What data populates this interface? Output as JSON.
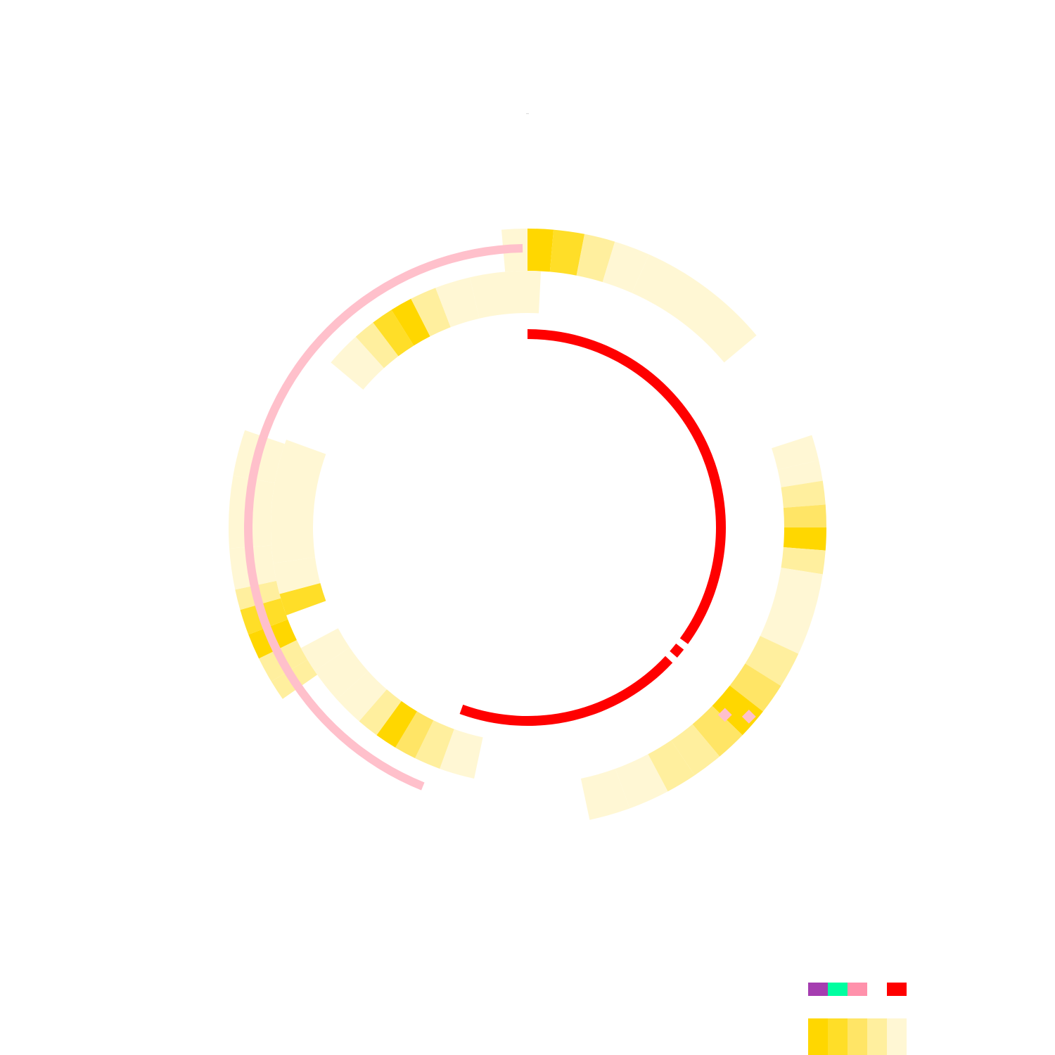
{
  "chart_data": {
    "type": "circos",
    "title": "--",
    "palette": [
      "#ffd700",
      "#ffde28",
      "#ffe566",
      "#ffef9e",
      "#fff7d4"
    ],
    "legend_colors": [
      "#a53db0",
      "#00ffa0",
      "#ff91ab",
      "#ffffff",
      "#ff0000"
    ],
    "tracks": [
      {
        "r": [
          365,
          425
        ],
        "cells": [
          [
            0,
            5,
            0
          ],
          [
            5,
            11,
            1
          ],
          [
            11,
            17,
            3
          ],
          [
            17,
            24,
            4
          ],
          [
            24,
            50,
            4
          ],
          [
            355,
            360,
            4
          ],
          [
            72,
            77,
            4
          ],
          [
            77,
            81,
            4
          ],
          [
            81,
            85.6,
            3
          ],
          [
            85.6,
            90,
            2
          ],
          [
            90,
            94.4,
            0
          ],
          [
            94.4,
            99,
            3
          ],
          [
            99,
            121,
            4
          ],
          [
            115,
            122,
            3
          ],
          [
            122,
            128,
            2
          ],
          [
            128,
            134,
            0
          ],
          [
            134,
            140,
            2
          ],
          [
            140,
            146,
            3
          ],
          [
            146,
            152,
            3
          ],
          [
            152,
            160,
            4
          ],
          [
            160,
            168,
            4
          ],
          [
            235,
            239,
            3
          ],
          [
            239,
            244,
            3
          ],
          [
            244,
            249,
            0
          ],
          [
            249,
            254,
            1
          ],
          [
            254,
            258,
            3
          ],
          [
            258,
            266,
            4
          ],
          [
            266,
            280,
            4
          ],
          [
            280,
            289,
            4
          ]
        ]
      },
      {
        "r": [
          305,
          365
        ],
        "cells": [
          [
            0,
            3,
            4
          ],
          [
            310,
            318,
            4
          ],
          [
            318,
            323,
            3
          ],
          [
            323,
            328,
            1
          ],
          [
            328,
            333,
            0
          ],
          [
            333,
            339,
            3
          ],
          [
            339,
            347,
            4
          ],
          [
            347,
            360,
            4
          ],
          [
            192,
            200,
            4
          ],
          [
            200,
            206,
            3
          ],
          [
            206,
            211,
            2
          ],
          [
            211,
            216,
            0
          ],
          [
            216,
            221,
            3
          ],
          [
            221,
            228,
            4
          ],
          [
            228,
            236,
            4
          ],
          [
            236,
            242,
            4
          ],
          [
            250,
            255,
            1
          ],
          [
            255,
            262,
            4
          ],
          [
            262,
            290,
            4
          ]
        ]
      }
    ],
    "arcs": [
      {
        "color": "#ffc0cb",
        "r": [
          391,
          403
        ],
        "start": 202,
        "end": 359
      },
      {
        "color": "#ff0000",
        "r": [
          268,
          282
        ],
        "start": 0,
        "end": 126
      },
      {
        "color": "#ff0000",
        "r": [
          268,
          282
        ],
        "start": 128,
        "end": 131
      },
      {
        "color": "#ff0000",
        "r": [
          268,
          282
        ],
        "start": 133,
        "end": 200
      }
    ],
    "points": [
      [
        130.5,
        414
      ],
      [
        133.5,
        387
      ]
    ],
    "point_color": "#ffc0cb"
  }
}
